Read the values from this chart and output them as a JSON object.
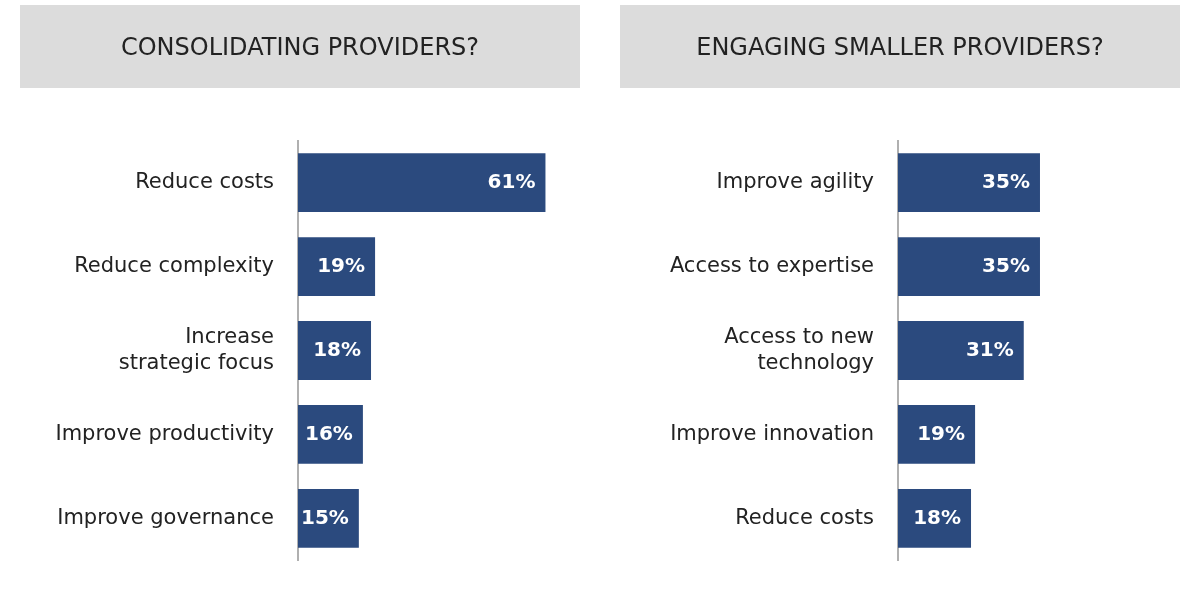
{
  "chart_data": [
    {
      "type": "bar",
      "orientation": "horizontal",
      "title": "CONSOLIDATING PROVIDERS?",
      "categories": [
        "Reduce costs",
        "Reduce complexity",
        "Increase strategic focus",
        "Improve productivity",
        "Improve governance"
      ],
      "values": [
        61,
        19,
        18,
        16,
        15
      ],
      "value_labels": [
        "61%",
        "19%",
        "18%",
        "16%",
        "15%"
      ],
      "color": "#2b4a7e",
      "tick_labels": "y"
    },
    {
      "type": "bar",
      "orientation": "horizontal",
      "title": "ENGAGING SMALLER PROVIDERS?",
      "categories": [
        "Improve agility",
        "Access to expertise",
        "Access to new technology",
        "Improve innovation",
        "Reduce costs"
      ],
      "values": [
        35,
        35,
        31,
        19,
        18
      ],
      "value_labels": [
        "35%",
        "35%",
        "31%",
        "19%",
        "18%"
      ],
      "color": "#2b4a7e",
      "tick_labels": "y"
    }
  ]
}
